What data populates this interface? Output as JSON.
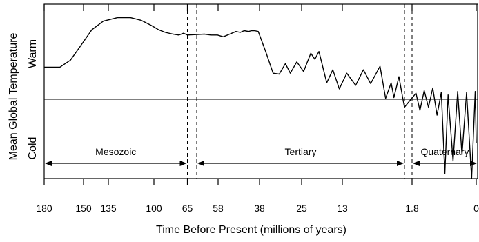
{
  "chart_data": {
    "type": "line",
    "xlabel": "Time Before Present (millions of years)",
    "ylabel": "Mean Global Temperature",
    "y_regions": {
      "upper": "Warm",
      "lower": "Cold"
    },
    "x_tick_labels": [
      "180",
      "150",
      "135",
      "100",
      "65",
      "58",
      "38",
      "25",
      "13",
      "1.8",
      "0"
    ],
    "x_scale": "piecewise (each era spans its own width)",
    "eras": [
      {
        "name": "Mesozoic",
        "from": 180,
        "to": 65
      },
      {
        "name": "Tertiary",
        "from": 65,
        "to": 1.8
      },
      {
        "name": "Quaternary",
        "from": 1.8,
        "to": 0
      }
    ],
    "era_boundaries": [
      65,
      1.8
    ],
    "reference_line": "present-day mean temperature (y = 0)",
    "y_range": [
      -1.0,
      1.0
    ],
    "grid": false,
    "series": [
      {
        "values": [
          [
            180,
            0.37
          ],
          [
            168,
            0.37
          ],
          [
            160,
            0.45
          ],
          [
            152,
            0.62
          ],
          [
            145,
            0.8
          ],
          [
            138,
            0.9
          ],
          [
            128,
            0.94
          ],
          [
            118,
            0.94
          ],
          [
            110,
            0.91
          ],
          [
            102,
            0.85
          ],
          [
            95,
            0.8
          ],
          [
            88,
            0.77
          ],
          [
            80,
            0.75
          ],
          [
            74,
            0.74
          ],
          [
            69,
            0.76
          ],
          [
            65,
            0.74
          ],
          [
            62.5,
            0.75
          ],
          [
            60.4,
            0.74
          ],
          [
            58.2,
            0.74
          ],
          [
            55.5,
            0.72
          ],
          [
            52.4,
            0.75
          ],
          [
            49.4,
            0.78
          ],
          [
            47.3,
            0.77
          ],
          [
            45.4,
            0.79
          ],
          [
            43.3,
            0.78
          ],
          [
            41.8,
            0.79
          ],
          [
            40.4,
            0.79
          ],
          [
            38.6,
            0.78
          ],
          [
            36.1,
            0.55
          ],
          [
            33.8,
            0.3
          ],
          [
            31.9,
            0.29
          ],
          [
            30.0,
            0.41
          ],
          [
            28.5,
            0.3
          ],
          [
            26.5,
            0.43
          ],
          [
            24.4,
            0.32
          ],
          [
            22.3,
            0.53
          ],
          [
            21.1,
            0.46
          ],
          [
            19.9,
            0.55
          ],
          [
            17.6,
            0.19
          ],
          [
            15.8,
            0.34
          ],
          [
            13.9,
            0.12
          ],
          [
            12.2,
            0.3
          ],
          [
            10.6,
            0.16
          ],
          [
            9.2,
            0.34
          ],
          [
            7.9,
            0.18
          ],
          [
            6.2,
            0.38
          ],
          [
            5.2,
            0.01
          ],
          [
            4.2,
            0.19
          ],
          [
            3.7,
            0.02
          ],
          [
            2.8,
            0.26
          ],
          [
            2.1,
            0.01
          ],
          [
            1.8,
            -0.1
          ],
          [
            1.69,
            0.07
          ],
          [
            1.58,
            -0.14
          ],
          [
            1.46,
            0.1
          ],
          [
            1.34,
            -0.1
          ],
          [
            1.22,
            0.13
          ],
          [
            1.1,
            -0.2
          ],
          [
            0.98,
            0.08
          ],
          [
            0.88,
            -0.94
          ],
          [
            0.79,
            0.05
          ],
          [
            0.65,
            -0.78
          ],
          [
            0.52,
            0.09
          ],
          [
            0.4,
            -0.7
          ],
          [
            0.27,
            0.08
          ],
          [
            0.13,
            -1.0
          ],
          [
            0.03,
            0.09
          ],
          [
            0.0,
            -0.55
          ]
        ]
      }
    ]
  }
}
